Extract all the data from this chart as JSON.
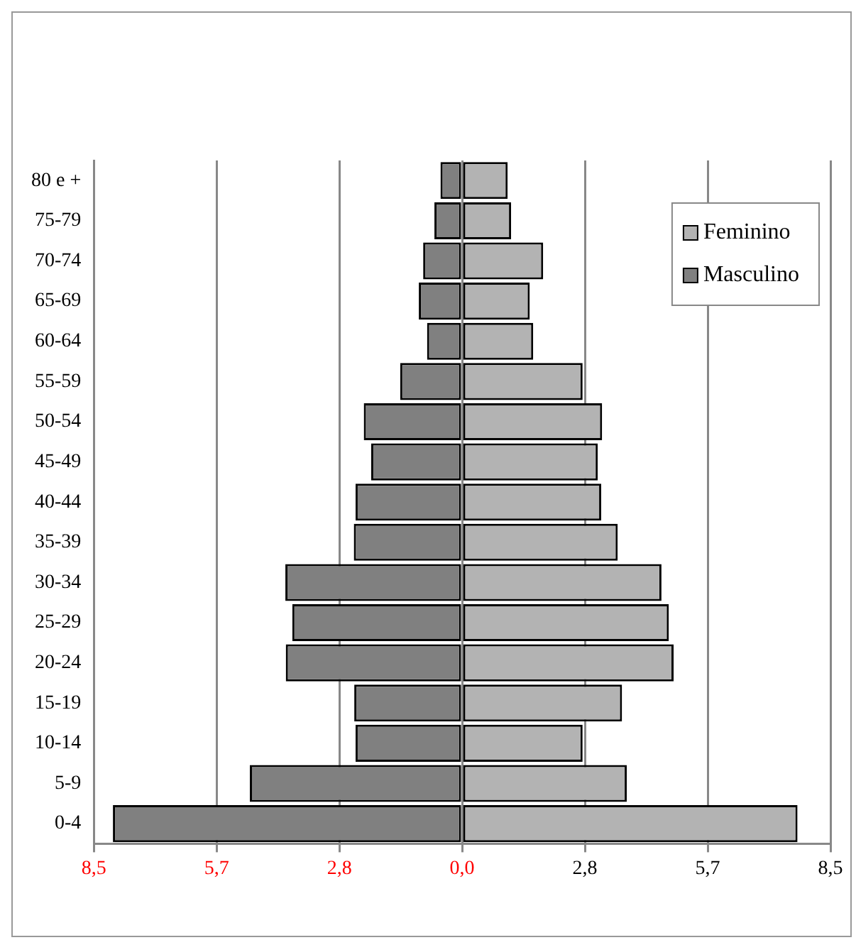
{
  "chart_data": {
    "type": "bar",
    "orientation": "horizontal",
    "stacked": true,
    "categories": [
      "80 e +",
      "75-79",
      "70-74",
      "65-69",
      "60-64",
      "55-59",
      "50-54",
      "45-49",
      "40-44",
      "35-39",
      "30-34",
      "25-29",
      "20-24",
      "15-19",
      "10-14",
      "5-9",
      "0-4"
    ],
    "series": [
      {
        "name": "Feminino",
        "color": "#b3b3b3",
        "values": [
          1.05,
          1.13,
          1.87,
          1.56,
          1.64,
          2.78,
          3.23,
          3.13,
          3.21,
          3.59,
          4.6,
          4.77,
          4.88,
          3.69,
          2.78,
          3.8,
          7.74
        ]
      },
      {
        "name": "Masculino",
        "color": "#808080",
        "values": [
          -0.5,
          -0.64,
          -0.9,
          -1.0,
          -0.81,
          -1.43,
          -2.27,
          -2.1,
          -2.46,
          -2.5,
          -4.08,
          -3.92,
          -4.07,
          -2.49,
          -2.46,
          -4.9,
          -8.06
        ]
      }
    ],
    "xlim": [
      -8.5,
      8.5
    ],
    "xticks": [
      {
        "value": -8.5,
        "label": "8,5"
      },
      {
        "value": -5.667,
        "label": "5,7"
      },
      {
        "value": -2.833,
        "label": "2,8"
      },
      {
        "value": 0,
        "label": "0,0"
      },
      {
        "value": 2.833,
        "label": "2,8"
      },
      {
        "value": 5.667,
        "label": "5,7"
      },
      {
        "value": 8.5,
        "label": "8,5"
      }
    ],
    "grid": "x",
    "legend": "top right"
  }
}
